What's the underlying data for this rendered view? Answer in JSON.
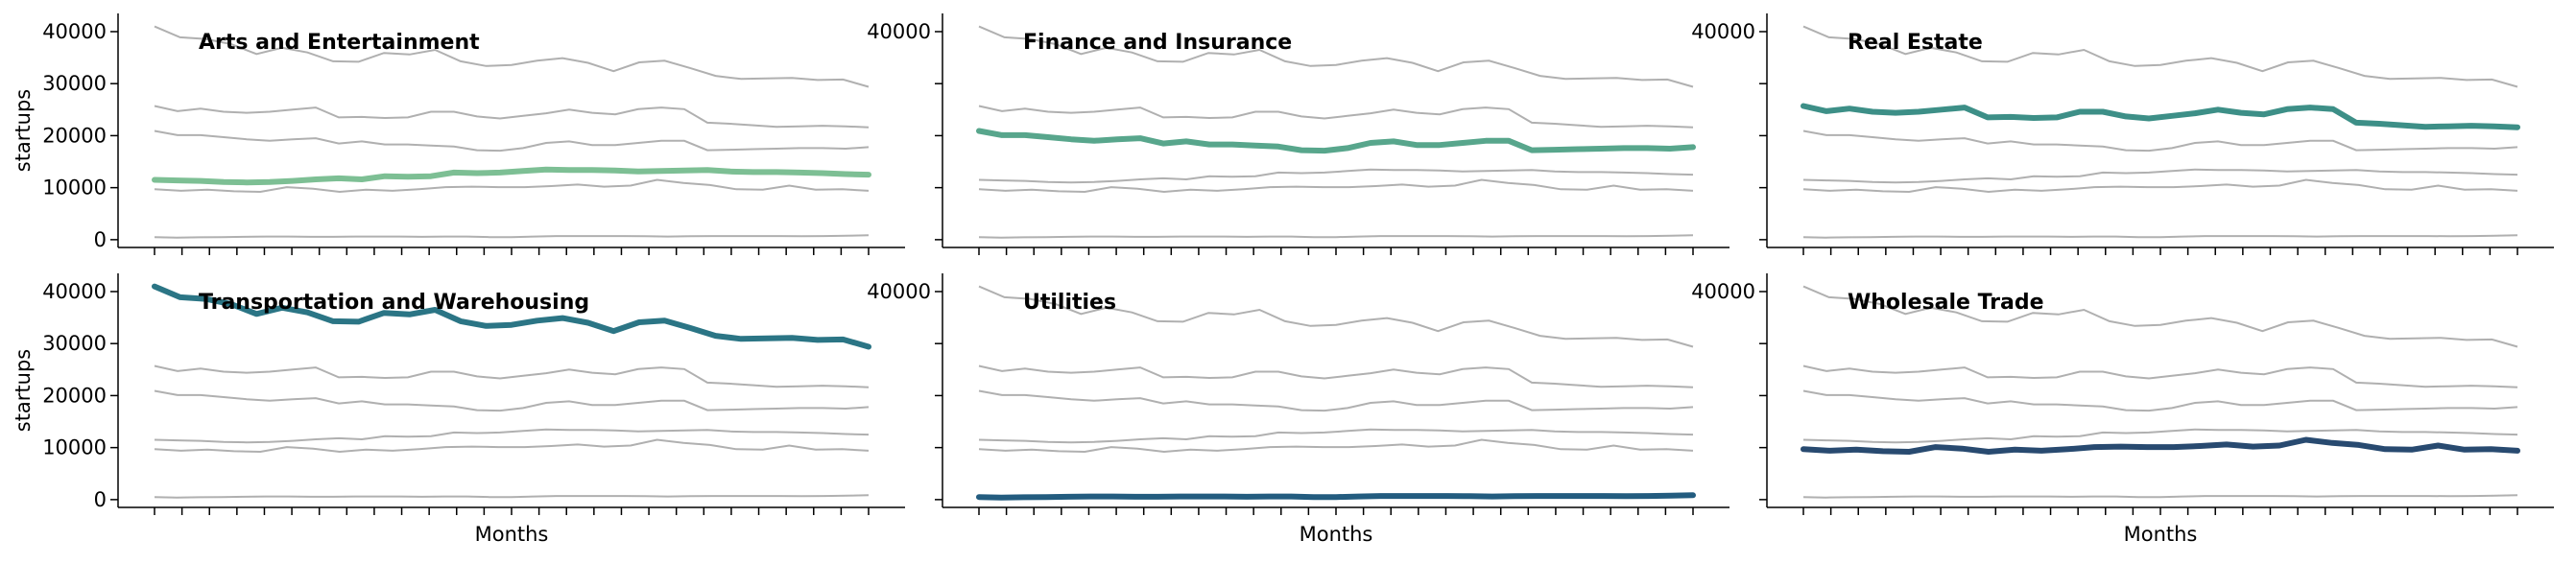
{
  "chart_data": {
    "type": "line",
    "layout": "small-multiples 2x3",
    "ylabel": "startups",
    "xlabel": "Months",
    "ylim": [
      -1500,
      43500
    ],
    "yticks": [
      0,
      10000,
      20000,
      30000,
      40000
    ],
    "ytick_labels": [
      "0",
      "10000",
      "20000",
      "30000",
      "40000"
    ],
    "x_tick_count": 27,
    "x_tick_labels": [],
    "grid": false,
    "legend": "none",
    "colors": {
      "background_series": "#b0b0b0",
      "Arts and Entertainment": "#7dbf94",
      "Finance and Insurance": "#58a68c",
      "Real Estate": "#3d8f87",
      "Transportation and Warehousing": "#2b7585",
      "Utilities": "#235c7f",
      "Wholesale Trade": "#284a70"
    },
    "series": [
      {
        "name": "Arts and Entertainment",
        "values": [
          11500,
          11400,
          11300,
          11100,
          11000,
          11100,
          11300,
          11600,
          11800,
          11600,
          12200,
          12100,
          12200,
          12900,
          12800,
          12900,
          13200,
          13500,
          13400,
          13400,
          13300,
          13100,
          13200,
          13300,
          13400,
          13100,
          13000,
          13000,
          12900,
          12800,
          12600,
          12500
        ]
      },
      {
        "name": "Finance and Insurance",
        "values": [
          20900,
          20100,
          20100,
          19700,
          19300,
          19000,
          19300,
          19500,
          18500,
          18900,
          18300,
          18300,
          18100,
          17900,
          17200,
          17100,
          17600,
          18600,
          18900,
          18200,
          18200,
          18600,
          19000,
          19000,
          17200,
          17300,
          17400,
          17500,
          17600,
          17600,
          17500,
          17800
        ]
      },
      {
        "name": "Real Estate",
        "values": [
          25700,
          24700,
          25200,
          24600,
          24400,
          24600,
          25000,
          25400,
          23500,
          23600,
          23400,
          23500,
          24600,
          24600,
          23700,
          23300,
          23800,
          24300,
          25000,
          24400,
          24100,
          25100,
          25400,
          25100,
          22500,
          22300,
          22000,
          21700,
          21800,
          21900,
          21800,
          21600
        ]
      },
      {
        "name": "Transportation and Warehousing",
        "values": [
          41000,
          38900,
          38600,
          37600,
          35700,
          36900,
          36000,
          34300,
          34200,
          35900,
          35600,
          36500,
          34300,
          33400,
          33600,
          34400,
          34900,
          34000,
          32400,
          34100,
          34400,
          33000,
          31500,
          30900,
          31000,
          31100,
          30700,
          30800,
          29400
        ]
      },
      {
        "name": "Utilities",
        "values": [
          500,
          400,
          450,
          500,
          550,
          600,
          600,
          550,
          550,
          600,
          600,
          600,
          550,
          600,
          600,
          500,
          500,
          600,
          700,
          700,
          700,
          700,
          650,
          600,
          650,
          700,
          700,
          700,
          700,
          650,
          700,
          750,
          850
        ]
      },
      {
        "name": "Wholesale Trade",
        "values": [
          9700,
          9400,
          9600,
          9300,
          9200,
          10100,
          9800,
          9200,
          9600,
          9400,
          9700,
          10100,
          10200,
          10100,
          10100,
          10300,
          10600,
          10200,
          10400,
          11500,
          10900,
          10500,
          9700,
          9600,
          10400,
          9600,
          9700,
          9400
        ]
      }
    ],
    "panels": [
      {
        "title": "Arts and Entertainment",
        "highlight": 0
      },
      {
        "title": "Finance and Insurance",
        "highlight": 1
      },
      {
        "title": "Real Estate",
        "highlight": 2
      },
      {
        "title": "Transportation and Warehousing",
        "highlight": 3
      },
      {
        "title": "Utilities",
        "highlight": 4
      },
      {
        "title": "Wholesale Trade",
        "highlight": 5
      }
    ]
  }
}
